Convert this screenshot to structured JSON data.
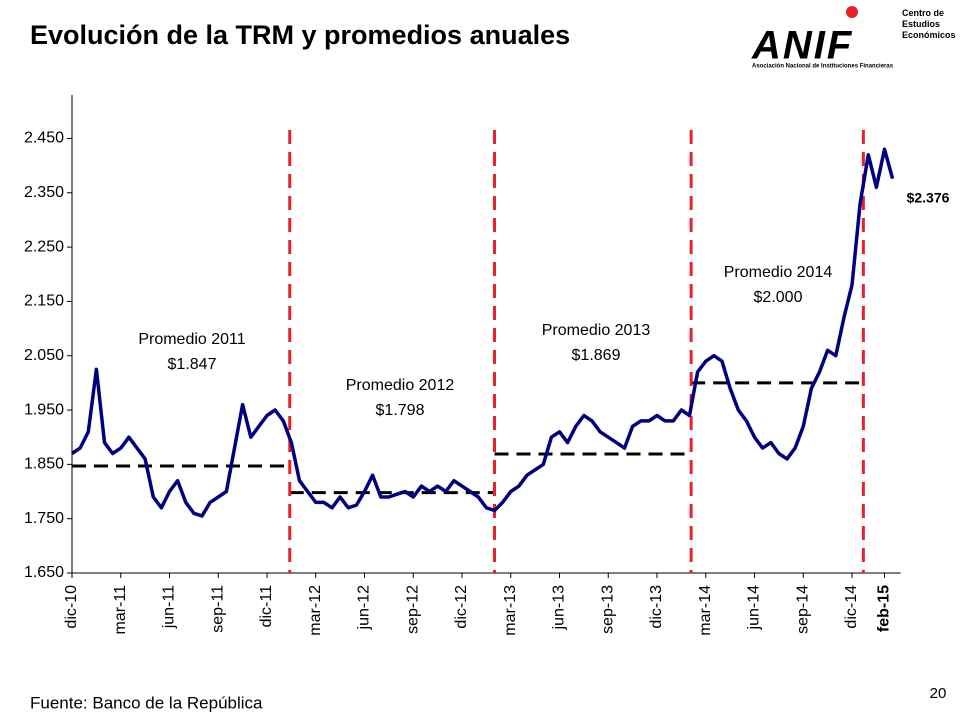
{
  "chart_data": {
    "type": "line",
    "title": "Evolución de la TRM y promedios anuales",
    "source": "Fuente: Banco de la República",
    "page_number": "20",
    "logo": {
      "name": "ANIF",
      "unit": "Centro de Estudios Económicos",
      "full_name": "Asociación Nacional de Instituciones Financieras"
    },
    "xlim": [
      0,
      51
    ],
    "ylim": [
      1650,
      2530
    ],
    "yticks": [
      {
        "value": 1650,
        "label": "1.650"
      },
      {
        "value": 1750,
        "label": "1.750"
      },
      {
        "value": 1850,
        "label": "1.850"
      },
      {
        "value": 1950,
        "label": "1.950"
      },
      {
        "value": 2050,
        "label": "2.050"
      },
      {
        "value": 2150,
        "label": "2.150"
      },
      {
        "value": 2250,
        "label": "2.250"
      },
      {
        "value": 2350,
        "label": "2.350"
      },
      {
        "value": 2450,
        "label": "2.450"
      }
    ],
    "xticks": [
      {
        "value": 0,
        "label": "dic-10"
      },
      {
        "value": 3,
        "label": "mar-11"
      },
      {
        "value": 6,
        "label": "jun-11"
      },
      {
        "value": 9,
        "label": "sep-11"
      },
      {
        "value": 12,
        "label": "dic-11"
      },
      {
        "value": 15,
        "label": "mar-12"
      },
      {
        "value": 18,
        "label": "jun-12"
      },
      {
        "value": 21,
        "label": "sep-12"
      },
      {
        "value": 24,
        "label": "dic-12"
      },
      {
        "value": 27,
        "label": "mar-13"
      },
      {
        "value": 30,
        "label": "jun-13"
      },
      {
        "value": 33,
        "label": "sep-13"
      },
      {
        "value": 36,
        "label": "dic-13"
      },
      {
        "value": 39,
        "label": "mar-14"
      },
      {
        "value": 42,
        "label": "jun-14"
      },
      {
        "value": 45,
        "label": "sep-14"
      },
      {
        "value": 48,
        "label": "dic-14"
      },
      {
        "value": 50,
        "label": "feb-15"
      }
    ],
    "series": [
      {
        "name": "TRM",
        "color": "#000080",
        "x": [
          0,
          0.5,
          1,
          1.5,
          2,
          2.5,
          3,
          3.5,
          4,
          4.5,
          5,
          5.5,
          6,
          6.5,
          7,
          7.5,
          8,
          8.5,
          9,
          9.5,
          10,
          10.5,
          11,
          11.5,
          12,
          12.5,
          13,
          13.5,
          14,
          14.5,
          15,
          15.5,
          16,
          16.5,
          17,
          17.5,
          18,
          18.5,
          19,
          19.5,
          20,
          20.5,
          21,
          21.5,
          22,
          22.5,
          23,
          23.5,
          24,
          24.5,
          25,
          25.5,
          26,
          26.5,
          27,
          27.5,
          28,
          28.5,
          29,
          29.5,
          30,
          30.5,
          31,
          31.5,
          32,
          32.5,
          33,
          33.5,
          34,
          34.5,
          35,
          35.5,
          36,
          36.5,
          37,
          37.5,
          38,
          38.5,
          39,
          39.5,
          40,
          40.5,
          41,
          41.5,
          42,
          42.5,
          43,
          43.5,
          44,
          44.5,
          45,
          45.5,
          46,
          46.5,
          47,
          47.5,
          48,
          48.5,
          49,
          49.5,
          50,
          50.5
        ],
        "values": [
          1870,
          1880,
          1910,
          2025,
          1890,
          1870,
          1880,
          1900,
          1880,
          1860,
          1790,
          1770,
          1800,
          1820,
          1780,
          1760,
          1755,
          1780,
          1790,
          1800,
          1880,
          1960,
          1900,
          1920,
          1940,
          1950,
          1930,
          1890,
          1820,
          1800,
          1780,
          1780,
          1770,
          1790,
          1770,
          1775,
          1800,
          1830,
          1790,
          1790,
          1795,
          1800,
          1790,
          1810,
          1800,
          1810,
          1800,
          1820,
          1810,
          1800,
          1790,
          1770,
          1765,
          1780,
          1800,
          1810,
          1830,
          1840,
          1850,
          1900,
          1910,
          1890,
          1920,
          1940,
          1930,
          1910,
          1900,
          1890,
          1880,
          1920,
          1930,
          1930,
          1940,
          1930,
          1930,
          1950,
          1940,
          2020,
          2040,
          2050,
          2040,
          1990,
          1950,
          1930,
          1900,
          1880,
          1890,
          1870,
          1860,
          1880,
          1920,
          1990,
          2020,
          2060,
          2050,
          2120,
          2180,
          2330,
          2420,
          2360,
          2430,
          2376
        ]
      }
    ],
    "last_value_label": "$2.376",
    "averages": [
      {
        "label": "Promedio 2011",
        "value": 1847,
        "value_label": "$1.847",
        "start": 0,
        "end": 13.4
      },
      {
        "label": "Promedio 2012",
        "value": 1798,
        "value_label": "$1.798",
        "start": 13.4,
        "end": 26
      },
      {
        "label": "Promedio 2013",
        "value": 1869,
        "value_label": "$1.869",
        "start": 26,
        "end": 38.1
      },
      {
        "label": "Promedio 2014",
        "value": 2000,
        "value_label": "$2.000",
        "start": 38.1,
        "end": 48.7
      }
    ],
    "average_color": "#000000",
    "boundary_color": "#e8202a"
  }
}
